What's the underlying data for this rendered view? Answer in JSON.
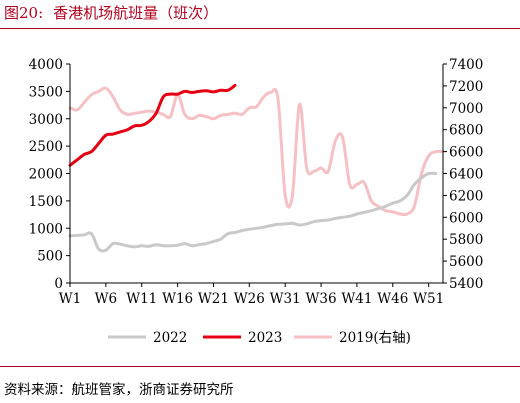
{
  "figure": {
    "number": "图20:",
    "title": "香港机场航班量（班次）"
  },
  "source": "资料来源：航班管家，浙商证券研究所",
  "chart_data": {
    "type": "line",
    "x_ticks": [
      "W1",
      "W6",
      "W11",
      "W16",
      "W21",
      "W26",
      "W31",
      "W36",
      "W41",
      "W46",
      "W51"
    ],
    "x_range": [
      1,
      53
    ],
    "left_axis": {
      "min": 0,
      "max": 4000,
      "step": 500,
      "ticks": [
        "0",
        "500",
        "1000",
        "1500",
        "2000",
        "2500",
        "3000",
        "3500",
        "4000"
      ]
    },
    "right_axis": {
      "min": 5400,
      "max": 7400,
      "step": 200,
      "ticks": [
        "5400",
        "5600",
        "5800",
        "6000",
        "6200",
        "6400",
        "6600",
        "6800",
        "7000",
        "7200",
        "7400"
      ]
    },
    "grid": false,
    "legend_position": "bottom",
    "series": [
      {
        "name": "2022",
        "axis": "left",
        "color": "#c9c9c9",
        "width": 3,
        "x": [
          1,
          2,
          3,
          4,
          5,
          6,
          7,
          8,
          9,
          10,
          11,
          12,
          13,
          14,
          15,
          16,
          17,
          18,
          19,
          20,
          21,
          22,
          23,
          24,
          25,
          26,
          27,
          28,
          29,
          30,
          31,
          32,
          33,
          34,
          35,
          36,
          37,
          38,
          39,
          40,
          41,
          42,
          43,
          44,
          45,
          46,
          47,
          48,
          49,
          50,
          51,
          52
        ],
        "values": [
          860,
          870,
          880,
          900,
          620,
          600,
          720,
          710,
          680,
          660,
          680,
          670,
          700,
          680,
          680,
          690,
          720,
          680,
          700,
          720,
          760,
          800,
          900,
          920,
          960,
          980,
          1000,
          1020,
          1050,
          1070,
          1080,
          1090,
          1060,
          1080,
          1120,
          1140,
          1150,
          1180,
          1200,
          1220,
          1260,
          1290,
          1320,
          1360,
          1400,
          1460,
          1500,
          1600,
          1800,
          1920,
          2000,
          2000
        ]
      },
      {
        "name": "2023",
        "axis": "left",
        "color": "#e60012",
        "width": 3,
        "x": [
          1,
          2,
          3,
          4,
          5,
          6,
          7,
          8,
          9,
          10,
          11,
          12,
          13,
          14,
          15,
          16,
          17,
          18,
          19,
          20,
          21,
          22,
          23,
          24
        ],
        "values": [
          2150,
          2250,
          2350,
          2400,
          2550,
          2700,
          2720,
          2760,
          2800,
          2870,
          2880,
          2950,
          3100,
          3400,
          3450,
          3450,
          3500,
          3480,
          3500,
          3510,
          3490,
          3520,
          3520,
          3610
        ]
      },
      {
        "name": "2019(右轴)",
        "axis": "right",
        "color": "#f6c0c4",
        "width": 3,
        "x": [
          1,
          2,
          3,
          4,
          5,
          6,
          7,
          8,
          9,
          10,
          11,
          12,
          13,
          14,
          15,
          16,
          17,
          18,
          19,
          20,
          21,
          22,
          23,
          24,
          25,
          26,
          27,
          28,
          29,
          30,
          31,
          32,
          33,
          34,
          35,
          36,
          37,
          38,
          39,
          40,
          41,
          42,
          43,
          44,
          45,
          46,
          47,
          48,
          49,
          50,
          51,
          52,
          53
        ],
        "values": [
          7000,
          6980,
          7050,
          7120,
          7150,
          7180,
          7100,
          6980,
          6940,
          6950,
          6960,
          6970,
          6960,
          6940,
          6920,
          7120,
          6940,
          6900,
          6930,
          6920,
          6900,
          6930,
          6940,
          6950,
          6940,
          7000,
          7010,
          7100,
          7140,
          7080,
          6200,
          6200,
          7030,
          6450,
          6420,
          6450,
          6420,
          6700,
          6730,
          6300,
          6300,
          6320,
          6150,
          6100,
          6060,
          6050,
          6030,
          6030,
          6100,
          6400,
          6560,
          6600,
          6600
        ]
      }
    ]
  }
}
